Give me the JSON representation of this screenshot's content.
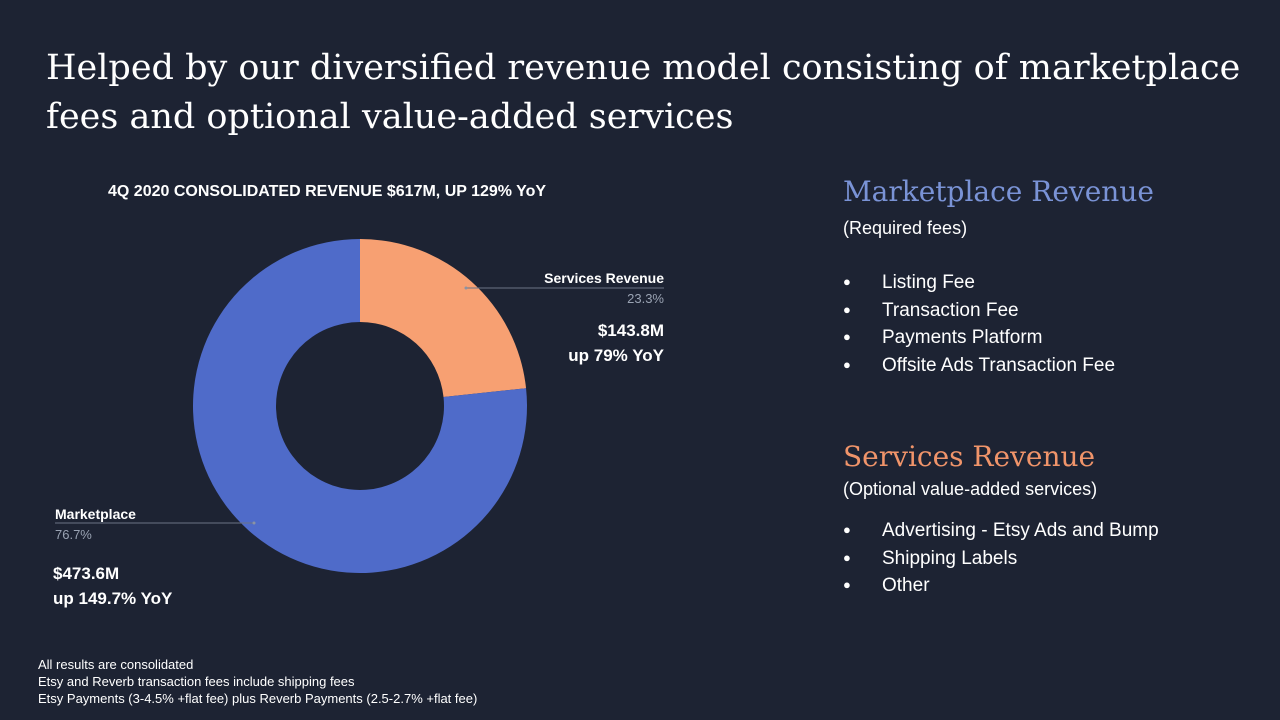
{
  "slide": {
    "title_lines": [
      "Helped by our diversified revenue model consisting of marketplace",
      "fees and optional value-added services"
    ]
  },
  "colors": {
    "background": "#1d2333",
    "marketplace": "#4f6bc9",
    "services": "#f7a072",
    "marketplace_heading": "#7a93d6",
    "services_heading": "#f0946a"
  },
  "chart_data": {
    "type": "pie",
    "title": "4Q 2020 CONSOLIDATED REVENUE $617M, UP 129% YoY",
    "slices": [
      {
        "name": "Services Revenue",
        "value": 23.3,
        "percent_label": "23.3%",
        "amount": "$143.8M",
        "growth": "up 79% YoY",
        "color": "#f7a072"
      },
      {
        "name": "Marketplace",
        "value": 76.7,
        "percent_label": "76.7%",
        "amount": "$473.6M",
        "growth": "up 149.7% YoY",
        "color": "#4f6bc9"
      }
    ],
    "legend": "none"
  },
  "panels": {
    "marketplace": {
      "heading": "Marketplace Revenue",
      "subheading": "(Required fees)",
      "items": [
        "Listing Fee",
        "Transaction Fee",
        "Payments Platform",
        "Offsite Ads Transaction Fee"
      ]
    },
    "services": {
      "heading": "Services Revenue",
      "subheading": "(Optional value-added services)",
      "items": [
        "Advertising - Etsy Ads and Bump",
        "Shipping Labels",
        "Other"
      ]
    }
  },
  "footnotes": [
    "All results are consolidated",
    "Etsy and Reverb transaction fees include shipping fees",
    "Etsy Payments (3-4.5% +flat fee) plus Reverb Payments (2.5-2.7% +flat fee)"
  ]
}
